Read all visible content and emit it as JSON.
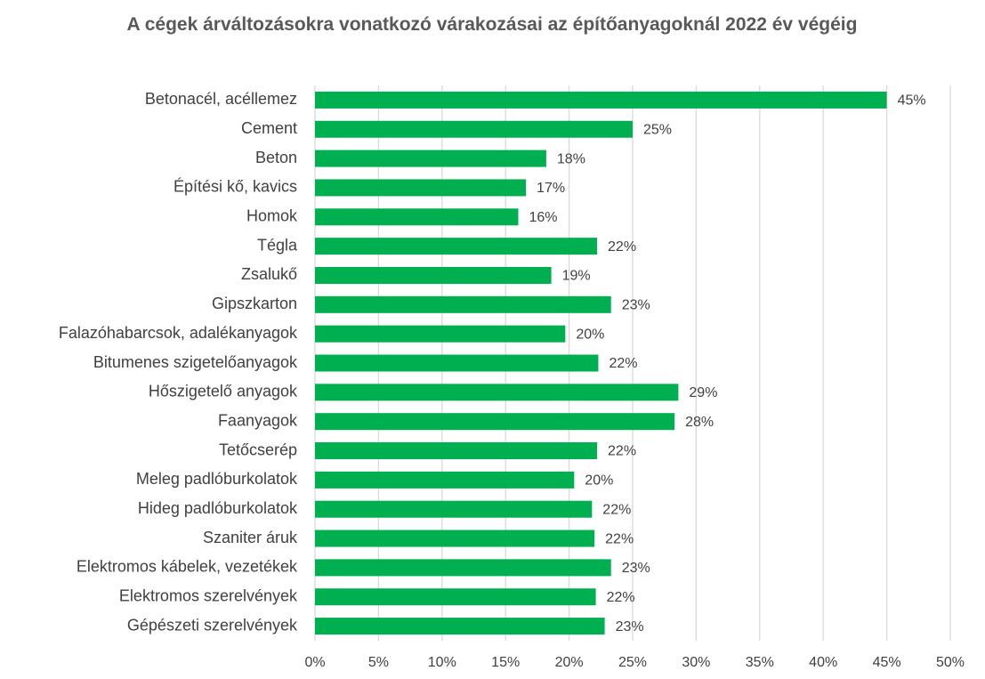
{
  "chart_data": {
    "type": "bar",
    "orientation": "horizontal",
    "title": "A cégek árváltozásokra vonatkozó várakozásai az építőanyagoknál 2022 év végéig",
    "categories": [
      "Betonacél, acéllemez",
      "Cement",
      "Beton",
      "Építési kő, kavics",
      "Homok",
      "Tégla",
      "Zsalukő",
      "Gipszkarton",
      "Falazóhabarcsok, adalékanyagok",
      "Bitumenes szigetelőanyagok",
      "Hőszigetelő anyagok",
      "Faanyagok",
      "Tetőcserép",
      "Meleg padlóburkolatok",
      "Hideg padlóburkolatok",
      "Szaniter áruk",
      "Elektromos kábelek, vezetékek",
      "Elektromos szerelvények",
      "Gépészeti szerelvények"
    ],
    "values": [
      45.0,
      25.0,
      18.2,
      16.6,
      16.0,
      22.2,
      18.6,
      23.3,
      19.7,
      22.3,
      28.6,
      28.3,
      22.2,
      20.4,
      21.8,
      22.0,
      23.3,
      22.1,
      22.8
    ],
    "value_labels": [
      "45%",
      "25%",
      "18%",
      "17%",
      "16%",
      "22%",
      "19%",
      "23%",
      "20%",
      "22%",
      "29%",
      "28%",
      "22%",
      "20%",
      "22%",
      "22%",
      "23%",
      "22%",
      "23%"
    ],
    "color": "#00b050",
    "xlim": [
      0,
      50
    ],
    "xticks": [
      {
        "value": 0,
        "label": "0%"
      },
      {
        "value": 5,
        "label": "5%"
      },
      {
        "value": 10,
        "label": "10%"
      },
      {
        "value": 15,
        "label": "15%"
      },
      {
        "value": 20,
        "label": "20%"
      },
      {
        "value": 25,
        "label": "25%"
      },
      {
        "value": 30,
        "label": "30%"
      },
      {
        "value": 35,
        "label": "35%"
      },
      {
        "value": 40,
        "label": "40%"
      },
      {
        "value": 45,
        "label": "45%"
      },
      {
        "value": 50,
        "label": "50%"
      }
    ],
    "grid": true
  }
}
